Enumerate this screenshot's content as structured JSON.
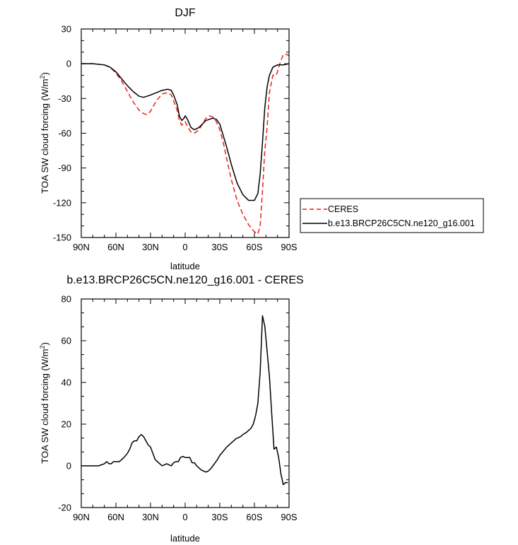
{
  "chart_data": [
    {
      "type": "line",
      "title": "DJF",
      "xlabel": "latitude",
      "ylabel": "TOA SW cloud forcing (W/m",
      "ylabel_sup": "2",
      "ylabel_close": ")",
      "xlim": [
        -90,
        90
      ],
      "ylim": [
        -150,
        30
      ],
      "xticks": [
        {
          "value": -90,
          "label": "90N"
        },
        {
          "value": -60,
          "label": "60N"
        },
        {
          "value": -30,
          "label": "30N"
        },
        {
          "value": 0,
          "label": "0"
        },
        {
          "value": 30,
          "label": "30S"
        },
        {
          "value": 60,
          "label": "60S"
        },
        {
          "value": 90,
          "label": "90S"
        }
      ],
      "yticks": [
        30,
        0,
        -30,
        -60,
        -90,
        -120,
        -150
      ],
      "legend_position": "right",
      "series": [
        {
          "name": "CERES",
          "color": "#e8201a",
          "dash": "dashed",
          "x": [
            -90,
            -80,
            -70,
            -65,
            -60,
            -55,
            -50,
            -45,
            -40,
            -36,
            -33,
            -30,
            -25,
            -20,
            -15,
            -12,
            -10,
            -7,
            -5,
            -3,
            0,
            2,
            5,
            8,
            12,
            15,
            18,
            21,
            24,
            27,
            30,
            33,
            36,
            40,
            45,
            50,
            55,
            60,
            63,
            65,
            67,
            69,
            71,
            73,
            76,
            79,
            82,
            85,
            88,
            90
          ],
          "y": [
            0,
            0,
            -1,
            -3,
            -8,
            -15,
            -24,
            -33,
            -40,
            -43,
            -44,
            -41,
            -32,
            -26,
            -25,
            -27,
            -32,
            -40,
            -49,
            -53,
            -50,
            -54,
            -59,
            -60,
            -57,
            -52,
            -47,
            -45,
            -46,
            -50,
            -57,
            -68,
            -82,
            -100,
            -118,
            -130,
            -139,
            -145,
            -147,
            -140,
            -110,
            -75,
            -55,
            -25,
            -10,
            -10,
            0,
            8,
            8,
            7
          ]
        },
        {
          "name": "b.e13.BRCP26C5CN.ne120_g16.001",
          "color": "#000000",
          "dash": "solid",
          "x": [
            -90,
            -80,
            -70,
            -65,
            -60,
            -55,
            -50,
            -45,
            -40,
            -36,
            -33,
            -30,
            -25,
            -20,
            -15,
            -12,
            -10,
            -7,
            -5,
            -3,
            -1,
            0,
            2,
            5,
            8,
            12,
            15,
            18,
            21,
            24,
            27,
            30,
            33,
            36,
            40,
            45,
            50,
            55,
            60,
            63,
            65,
            67,
            69,
            71,
            73,
            76,
            80,
            85,
            90
          ],
          "y": [
            0,
            0,
            -1,
            -3,
            -7,
            -13,
            -19,
            -24,
            -28,
            -29,
            -28,
            -27,
            -25,
            -23,
            -22,
            -23,
            -27,
            -35,
            -45,
            -49,
            -47,
            -45,
            -48,
            -55,
            -57,
            -55,
            -52,
            -49,
            -48,
            -47,
            -48,
            -52,
            -62,
            -72,
            -87,
            -103,
            -113,
            -118,
            -118,
            -112,
            -95,
            -68,
            -38,
            -20,
            -10,
            -3,
            -1,
            -1,
            0
          ]
        }
      ]
    },
    {
      "type": "line",
      "title": "b.e13.BRCP26C5CN.ne120_g16.001 - CERES",
      "xlabel": "latitude",
      "ylabel": "TOA SW cloud forcing (W/m",
      "ylabel_sup": "2",
      "ylabel_close": ")",
      "xlim": [
        -90,
        90
      ],
      "ylim": [
        -20,
        80
      ],
      "xticks": [
        {
          "value": -90,
          "label": "90N"
        },
        {
          "value": -60,
          "label": "60N"
        },
        {
          "value": -30,
          "label": "30N"
        },
        {
          "value": 0,
          "label": "0"
        },
        {
          "value": 30,
          "label": "30S"
        },
        {
          "value": 60,
          "label": "60S"
        },
        {
          "value": 90,
          "label": "90S"
        }
      ],
      "yticks": [
        80,
        60,
        40,
        20,
        0,
        -20
      ],
      "series": [
        {
          "color": "#000000",
          "dash": "solid",
          "x": [
            -90,
            -80,
            -75,
            -70,
            -68,
            -66,
            -64,
            -62,
            -60,
            -57,
            -55,
            -53,
            -50,
            -48,
            -46,
            -44,
            -42,
            -40,
            -38,
            -36,
            -34,
            -32,
            -30,
            -28,
            -26,
            -24,
            -22,
            -20,
            -18,
            -16,
            -14,
            -12,
            -10,
            -8,
            -6,
            -4,
            -2,
            0,
            2,
            4,
            6,
            8,
            10,
            12,
            14,
            16,
            18,
            20,
            22,
            24,
            26,
            28,
            30,
            33,
            36,
            40,
            44,
            48,
            50,
            53,
            55,
            57,
            59,
            61,
            63,
            65,
            67,
            69,
            71,
            73,
            75,
            77,
            79,
            81,
            83,
            85,
            87,
            89
          ],
          "y": [
            0,
            0,
            0,
            1,
            2,
            1,
            1,
            2,
            2,
            2,
            3,
            4,
            6,
            8,
            11,
            12,
            12,
            14,
            15,
            14,
            12,
            10,
            9,
            6,
            3,
            2,
            1,
            0,
            0.5,
            1,
            0.5,
            0,
            1.5,
            2,
            2,
            4,
            4.5,
            4,
            4,
            4,
            1.5,
            1.5,
            0,
            -1,
            -2,
            -2.5,
            -3,
            -2.5,
            -1.5,
            0,
            1.5,
            3,
            5,
            7,
            9,
            11,
            13,
            14,
            15,
            16,
            17,
            18,
            20,
            24,
            30,
            45,
            72,
            67,
            55,
            43,
            25,
            8,
            9,
            4,
            -4,
            -9,
            -8,
            -8
          ]
        }
      ]
    }
  ]
}
